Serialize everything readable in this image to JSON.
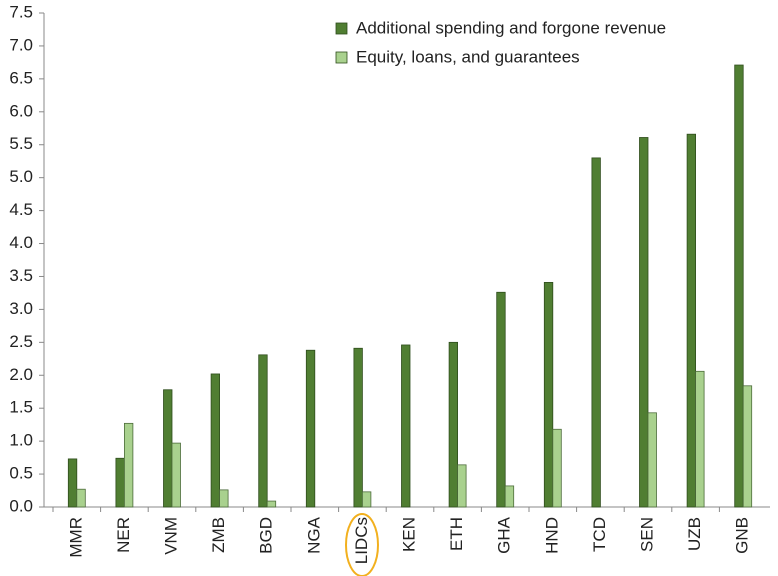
{
  "chart_data": {
    "type": "bar",
    "categories": [
      "MMR",
      "NER",
      "VNM",
      "ZMB",
      "BGD",
      "NGA",
      "LIDCs",
      "KEN",
      "ETH",
      "GHA",
      "HND",
      "TCD",
      "SEN",
      "UZB",
      "GNB"
    ],
    "series": [
      {
        "name": "Additional spending and forgone revenue",
        "color": "#507e32",
        "values": [
          0.73,
          0.74,
          1.78,
          2.02,
          2.31,
          2.38,
          2.41,
          2.46,
          2.5,
          3.26,
          3.41,
          5.3,
          5.61,
          5.66,
          6.71
        ]
      },
      {
        "name": "Equity, loans, and guarantees",
        "color": "#a9d18e",
        "values": [
          0.27,
          1.27,
          0.97,
          0.26,
          0.09,
          0,
          0.23,
          0,
          0.64,
          0.32,
          1.18,
          0,
          1.43,
          2.06,
          1.84
        ]
      }
    ],
    "ylim": [
      0,
      7.5
    ],
    "yticks": [
      {
        "value": 0,
        "label": "0.0"
      },
      {
        "value": 0.5,
        "label": "0.5"
      },
      {
        "value": 1,
        "label": "1.0"
      },
      {
        "value": 1.5,
        "label": "1.5"
      },
      {
        "value": 2,
        "label": "2.0"
      },
      {
        "value": 2.5,
        "label": "2.5"
      },
      {
        "value": 3,
        "label": "3.0"
      },
      {
        "value": 3.5,
        "label": "3.5"
      },
      {
        "value": 4,
        "label": "4.0"
      },
      {
        "value": 4.5,
        "label": "4.5"
      },
      {
        "value": 5,
        "label": "5.0"
      },
      {
        "value": 5.5,
        "label": "5.5"
      },
      {
        "value": 6,
        "label": "6.0"
      },
      {
        "value": 6.5,
        "label": "6.5"
      },
      {
        "value": 7,
        "label": "7.0"
      },
      {
        "value": 7.5,
        "label": "7.5"
      }
    ],
    "grid": false,
    "legend": "top-right"
  }
}
